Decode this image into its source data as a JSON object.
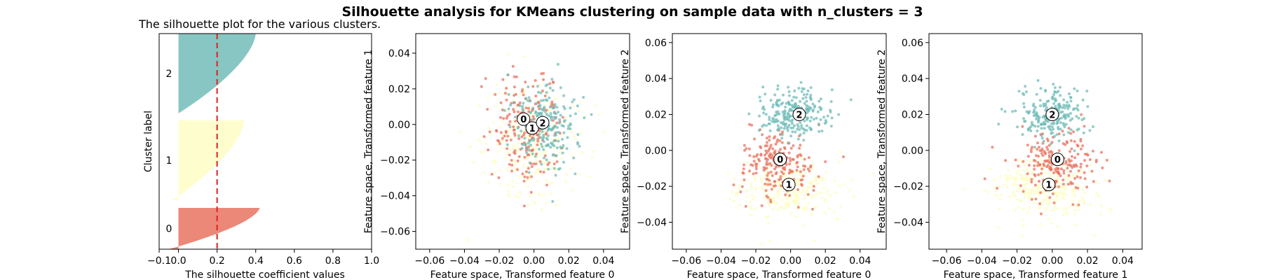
{
  "suptitle": "Silhouette analysis for KMeans clustering on sample data with n_clusters = 3",
  "colors": {
    "cluster0": "#e8735f",
    "cluster1": "#fefdc4",
    "cluster2": "#72bcb8",
    "avg_line": "#e02020"
  },
  "chart_data": [
    {
      "type": "area",
      "title": "The silhouette plot for the various clusters.",
      "xlabel": "The silhouette coefficient values",
      "ylabel": "Cluster label",
      "xlim": [
        -0.1,
        1.0
      ],
      "xticks": [
        -0.1,
        0.0,
        0.2,
        0.4,
        0.6,
        0.8,
        1.0
      ],
      "xtick_labels": [
        "−0.1",
        "0.0",
        "0.2",
        "0.4",
        "0.6",
        "0.8",
        "1.0"
      ],
      "average_silhouette": 0.2,
      "clusters": [
        {
          "label": "0",
          "min": -0.05,
          "max": 0.42
        },
        {
          "label": "1",
          "min": -0.03,
          "max": 0.34
        },
        {
          "label": "2",
          "min": 0.0,
          "max": 0.4
        }
      ]
    },
    {
      "type": "scatter",
      "xlabel": "Feature space, Transformed feature 0",
      "ylabel": "Feature space, Transformed feature 1",
      "xlim": [
        -0.068,
        0.055
      ],
      "ylim": [
        -0.07,
        0.051
      ],
      "xticks": [
        -0.06,
        -0.04,
        -0.02,
        0.0,
        0.02,
        0.04
      ],
      "xtick_labels": [
        "−0.06",
        "−0.04",
        "−0.02",
        "0.00",
        "0.02",
        "0.04"
      ],
      "yticks": [
        -0.06,
        -0.04,
        -0.02,
        0.0,
        0.02,
        0.04
      ],
      "ytick_labels": [
        "−0.06",
        "−0.04",
        "−0.02",
        "0.00",
        "0.02",
        "0.04"
      ],
      "centers": [
        {
          "label": "0",
          "x": -0.006,
          "y": 0.003
        },
        {
          "label": "1",
          "x": -0.001,
          "y": -0.002
        },
        {
          "label": "2",
          "x": 0.005,
          "y": 0.001
        }
      ],
      "point_clouds": [
        {
          "cluster": 1,
          "n": 260,
          "cx": 0.0,
          "cy": -0.012,
          "sx": 0.024,
          "sy": 0.025
        },
        {
          "cluster": 0,
          "n": 210,
          "cx": -0.005,
          "cy": -0.002,
          "sx": 0.016,
          "sy": 0.022
        },
        {
          "cluster": 2,
          "n": 230,
          "cx": 0.006,
          "cy": 0.0,
          "sx": 0.016,
          "sy": 0.02
        }
      ]
    },
    {
      "type": "scatter",
      "xlabel": "Feature space, Transformed feature 0",
      "ylabel": "Feature space, Transformed feature 2",
      "xlim": [
        -0.068,
        0.055
      ],
      "ylim": [
        -0.055,
        0.065
      ],
      "xticks": [
        -0.06,
        -0.04,
        -0.02,
        0.0,
        0.02,
        0.04
      ],
      "xtick_labels": [
        "−0.06",
        "−0.04",
        "−0.02",
        "0.00",
        "0.02",
        "0.04"
      ],
      "yticks": [
        -0.04,
        -0.02,
        0.0,
        0.02,
        0.04,
        0.06
      ],
      "ytick_labels": [
        "−0.04",
        "−0.02",
        "0.00",
        "0.02",
        "0.04",
        "0.06"
      ],
      "centers": [
        {
          "label": "0",
          "x": -0.006,
          "y": -0.005
        },
        {
          "label": "1",
          "x": -0.001,
          "y": -0.019
        },
        {
          "label": "2",
          "x": 0.005,
          "y": 0.02
        }
      ],
      "point_clouds": [
        {
          "cluster": 1,
          "n": 260,
          "cx": -0.002,
          "cy": -0.022,
          "sx": 0.025,
          "sy": 0.014
        },
        {
          "cluster": 0,
          "n": 210,
          "cx": -0.008,
          "cy": -0.007,
          "sx": 0.017,
          "sy": 0.015
        },
        {
          "cluster": 2,
          "n": 230,
          "cx": 0.002,
          "cy": 0.02,
          "sx": 0.016,
          "sy": 0.011
        }
      ]
    },
    {
      "type": "scatter",
      "xlabel": "Feature space, Transformed feature 1",
      "ylabel": "Feature space, Transformed feature 2",
      "xlim": [
        -0.07,
        0.051
      ],
      "ylim": [
        -0.055,
        0.065
      ],
      "xticks": [
        -0.06,
        -0.04,
        -0.02,
        0.0,
        0.02,
        0.04
      ],
      "xtick_labels": [
        "−0.06",
        "−0.04",
        "−0.02",
        "0.00",
        "0.02",
        "0.04"
      ],
      "yticks": [
        -0.04,
        -0.02,
        0.0,
        0.02,
        0.04,
        0.06
      ],
      "ytick_labels": [
        "−0.04",
        "−0.02",
        "0.00",
        "0.02",
        "0.04",
        "0.06"
      ],
      "centers": [
        {
          "label": "0",
          "x": 0.003,
          "y": -0.005
        },
        {
          "label": "1",
          "x": -0.002,
          "y": -0.019
        },
        {
          "label": "2",
          "x": 0.0,
          "y": 0.02
        }
      ],
      "point_clouds": [
        {
          "cluster": 1,
          "n": 260,
          "cx": -0.004,
          "cy": -0.022,
          "sx": 0.024,
          "sy": 0.014
        },
        {
          "cluster": 0,
          "n": 210,
          "cx": 0.002,
          "cy": -0.007,
          "sx": 0.018,
          "sy": 0.015
        },
        {
          "cluster": 2,
          "n": 230,
          "cx": 0.0,
          "cy": 0.02,
          "sx": 0.014,
          "sy": 0.011
        }
      ]
    }
  ]
}
